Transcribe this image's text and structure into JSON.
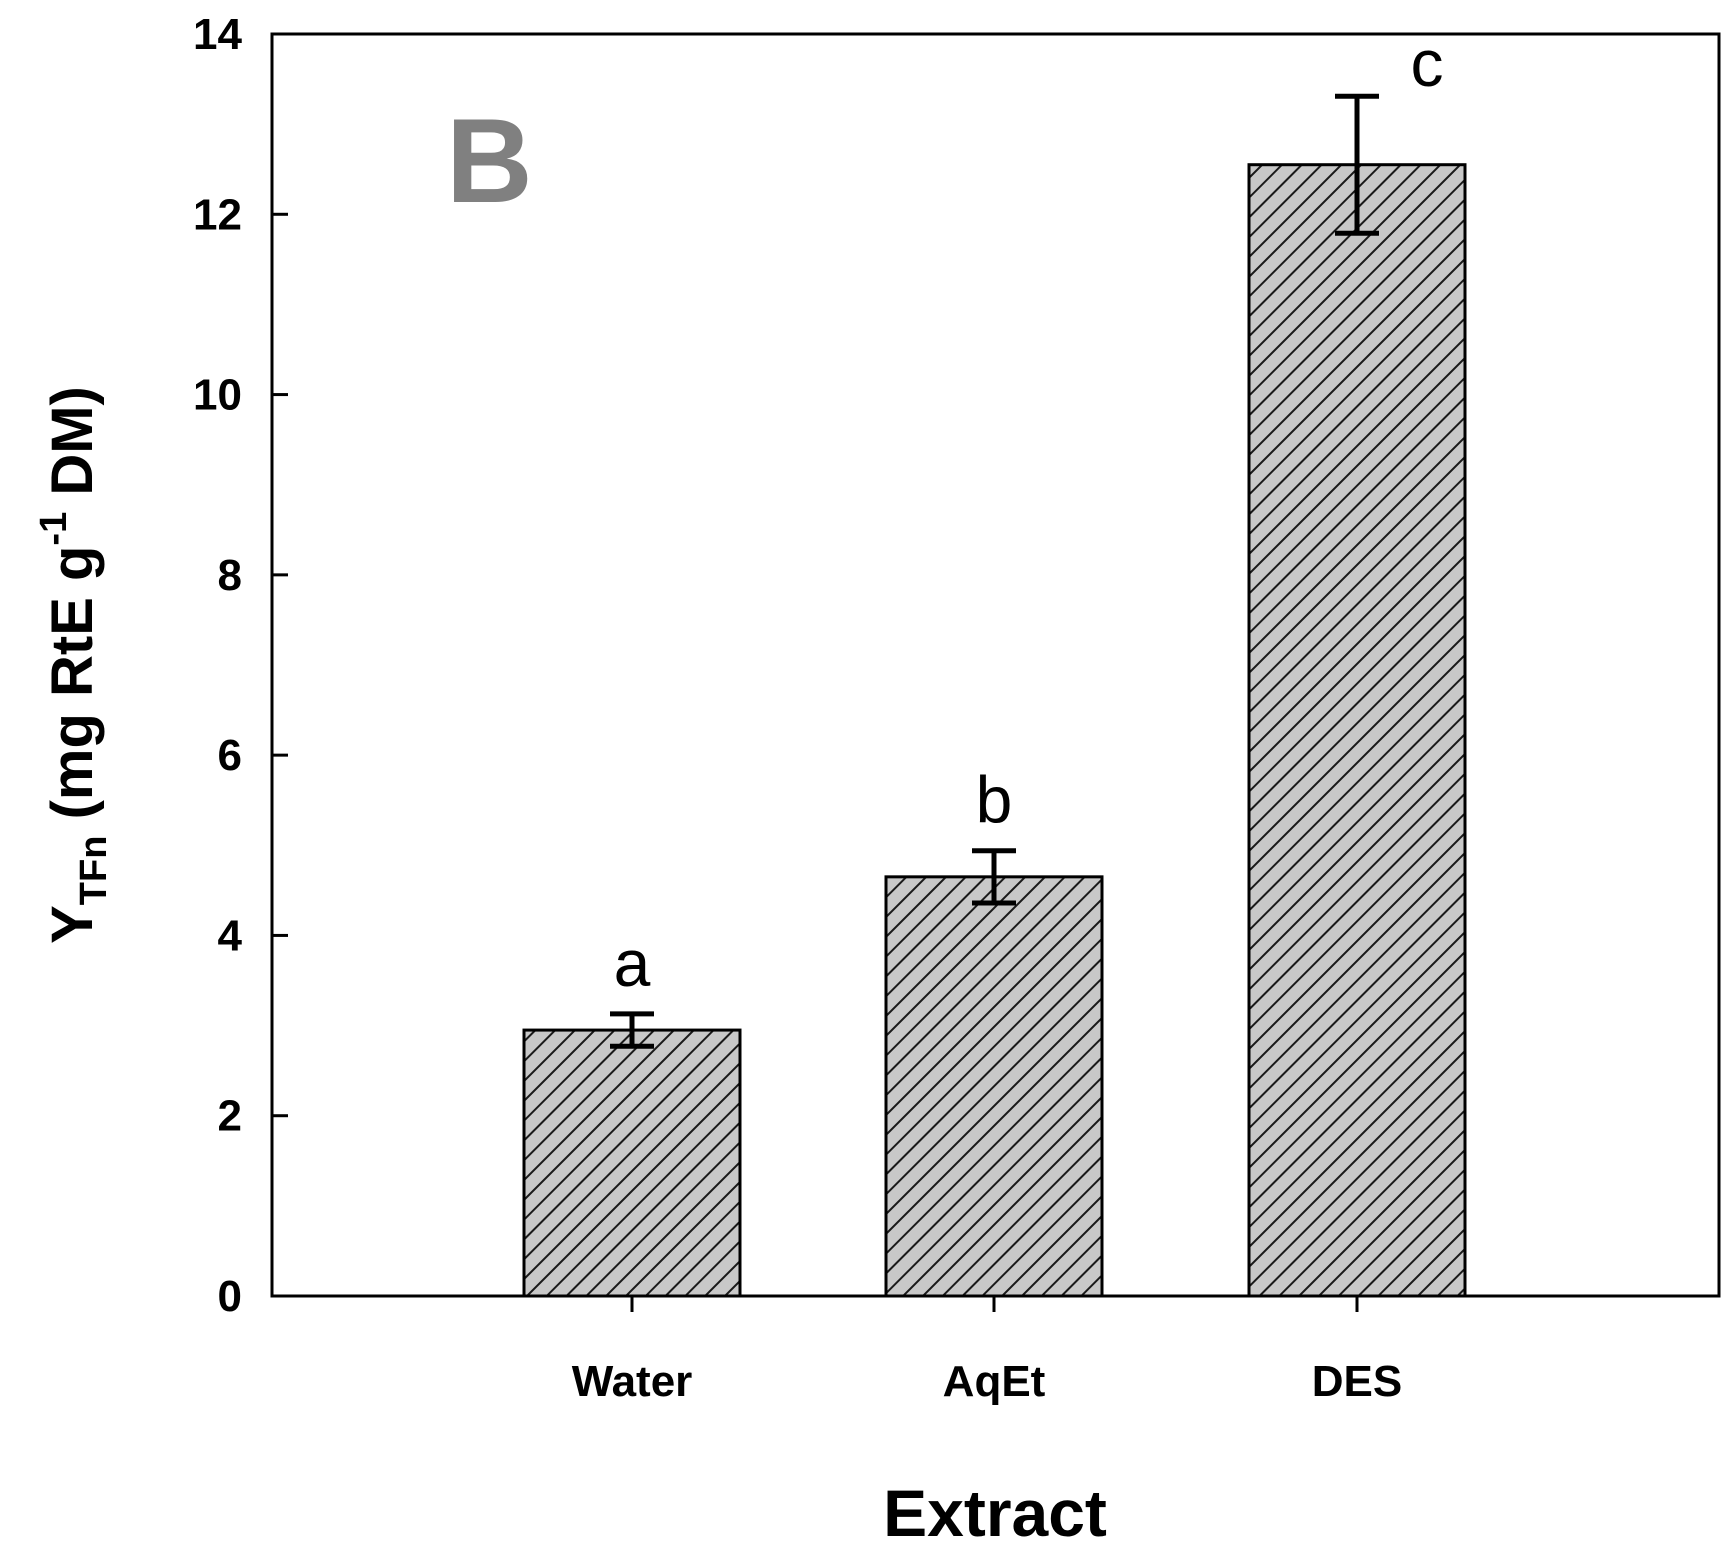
{
  "chart_data": {
    "type": "bar",
    "panel_label": "B",
    "categories": [
      "Water",
      "AqEt",
      "DES"
    ],
    "values": [
      2.95,
      4.65,
      12.55
    ],
    "errors": [
      0.18,
      0.29,
      0.76
    ],
    "significance_letters": [
      "a",
      "b",
      "c"
    ],
    "xlabel": "Extract",
    "ylabel": {
      "main": "Y",
      "subscript": "TFn",
      "before_superscript": " (mg RtE g",
      "superscript": "-1",
      "after_superscript": " DM)"
    },
    "ylim": [
      0,
      14
    ],
    "yticks": [
      "0",
      "2",
      "4",
      "6",
      "8",
      "10",
      "12",
      "14"
    ],
    "grid": false,
    "colors": {
      "bar_fill": "#c8c8c8",
      "hatch": "#1a1a1a",
      "panel_label": "#808080",
      "axis": "#000000"
    }
  }
}
